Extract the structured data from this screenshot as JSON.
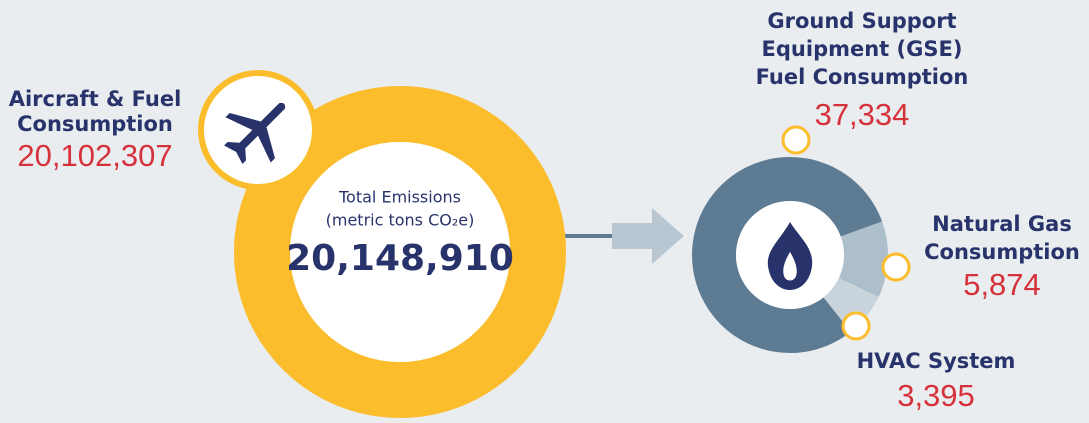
{
  "total": {
    "title_lines": [
      "Total Emissions",
      "(metric tons CO₂e)"
    ],
    "value": 20148910,
    "value_label": "20,148,910"
  },
  "aircraft": {
    "name_lines": [
      "Aircraft & Fuel",
      "Consumption"
    ],
    "value": 20102307,
    "value_label": "20,102,307"
  },
  "breakdown": [
    {
      "name_lines": [
        "Ground Support",
        "Equipment (GSE)",
        "Fuel Consumption"
      ],
      "value": 37334,
      "value_label": "37,334",
      "color": "#5e7b94"
    },
    {
      "name_lines": [
        "Natural Gas",
        "Consumption"
      ],
      "value": 5874,
      "value_label": "5,874",
      "color": "#aebfcc"
    },
    {
      "name_lines": [
        "HVAC System"
      ],
      "value": 3395,
      "value_label": "3,395",
      "color": "#c8d3dc"
    }
  ]
}
